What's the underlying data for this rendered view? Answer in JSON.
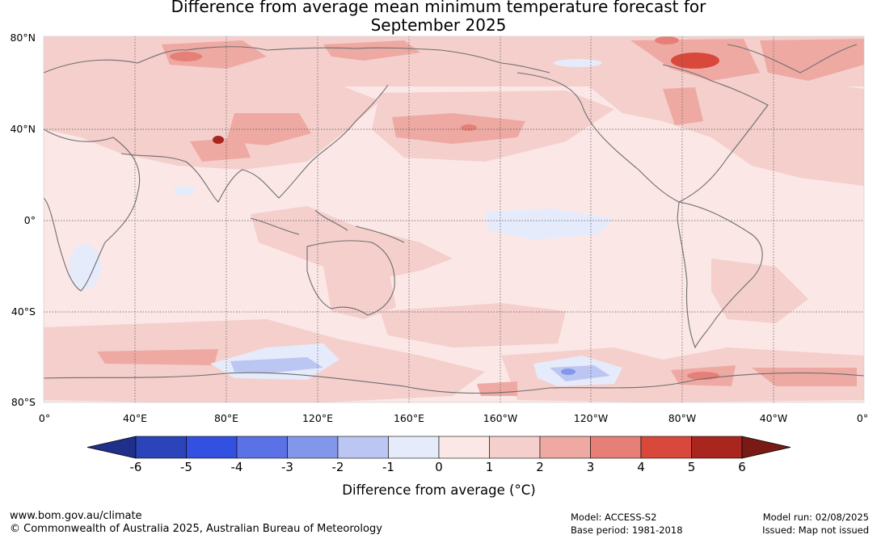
{
  "title": {
    "line1": "Difference from average mean minimum temperature forecast for",
    "line2": "September 2025"
  },
  "map": {
    "lat_labels": [
      "80°N",
      "40°N",
      "0°",
      "40°S",
      "80°S"
    ],
    "lon_labels": [
      "0°",
      "40°E",
      "80°E",
      "120°E",
      "160°E",
      "160°W",
      "120°W",
      "80°W",
      "40°W",
      "0°"
    ],
    "gridlines": "dotted",
    "coastline_color": "#6e6e6e"
  },
  "colorbar": {
    "title": "Difference from average (°C)",
    "ticks": [
      "-6",
      "-5",
      "-4",
      "-3",
      "-2",
      "-1",
      "0",
      "1",
      "2",
      "3",
      "4",
      "5",
      "6"
    ],
    "colors": [
      "#1f2f8a",
      "#2b44b9",
      "#3351e0",
      "#5a72e6",
      "#8397ea",
      "#bcc6f2",
      "#e6ebfb",
      "#fbe7e6",
      "#f4cfcc",
      "#eea9a3",
      "#e57f77",
      "#d8493c",
      "#a9261e",
      "#7a1a14"
    ],
    "extend": "both"
  },
  "footer": {
    "url": "www.bom.gov.au/climate",
    "copyright": "© Commonwealth of Australia 2025, Australian Bureau of Meteorology",
    "model": "Model: ACCESS-S2",
    "base_period": "Base period: 1981-2018",
    "model_run": "Model run: 02/08/2025",
    "issued": "Issued: Map not issued"
  }
}
